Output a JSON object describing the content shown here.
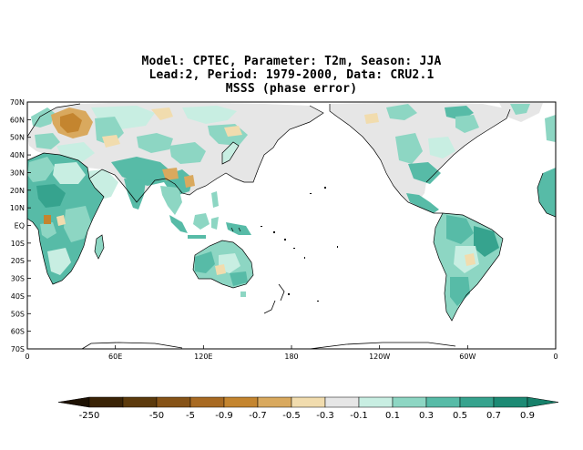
{
  "title": {
    "line1": "Model: CPTEC, Parameter: T2m, Season: JJA",
    "line2": "Lead:2, Period: 1979-2000, Data: CRU2.1",
    "line3": "MSSS (phase error)"
  },
  "map": {
    "projection": "cylindrical",
    "lon_range": [
      0,
      360
    ],
    "lat_range": [
      -70,
      70
    ],
    "lat_ticks": [
      {
        "lat": 70,
        "label": "70N"
      },
      {
        "lat": 60,
        "label": "60N"
      },
      {
        "lat": 50,
        "label": "50N"
      },
      {
        "lat": 40,
        "label": "40N"
      },
      {
        "lat": 30,
        "label": "30N"
      },
      {
        "lat": 20,
        "label": "20N"
      },
      {
        "lat": 10,
        "label": "10N"
      },
      {
        "lat": 0,
        "label": "EQ"
      },
      {
        "lat": -10,
        "label": "10S"
      },
      {
        "lat": -20,
        "label": "20S"
      },
      {
        "lat": -30,
        "label": "30S"
      },
      {
        "lat": -40,
        "label": "40S"
      },
      {
        "lat": -50,
        "label": "50S"
      },
      {
        "lat": -60,
        "label": "60S"
      },
      {
        "lat": -70,
        "label": "70S"
      }
    ],
    "lon_ticks": [
      {
        "lon": 0,
        "label": "0"
      },
      {
        "lon": 60,
        "label": "60E"
      },
      {
        "lon": 120,
        "label": "120E"
      },
      {
        "lon": 180,
        "label": "180"
      },
      {
        "lon": 240,
        "label": "120W"
      },
      {
        "lon": 300,
        "label": "60W"
      },
      {
        "lon": 360,
        "label": "0"
      }
    ]
  },
  "colorbar": {
    "labels": [
      "-250",
      "-50",
      "-5",
      "-0.9",
      "-0.7",
      "-0.5",
      "-0.3",
      "-0.1",
      "0.1",
      "0.3",
      "0.5",
      "0.7",
      "0.9"
    ],
    "colors": [
      "#3a2306",
      "#5c3a0c",
      "#865317",
      "#a86a22",
      "#c4852f",
      "#d9a95e",
      "#f1dcae",
      "#e6e6e6",
      "#c8eee2",
      "#8dd6c3",
      "#57bba7",
      "#36a38e",
      "#1c8a74"
    ]
  },
  "legend_colors": {
    "land_gray": "#e6e6e6",
    "pos_light": "#c8eee2",
    "pos_mid": "#8dd6c3",
    "pos_strong": "#57bba7",
    "pos_deep": "#36a38e",
    "neg_light": "#f1dcae",
    "neg_mid": "#d9a95e",
    "neg_strong": "#c4852f",
    "neg_deep": "#a86a22"
  }
}
